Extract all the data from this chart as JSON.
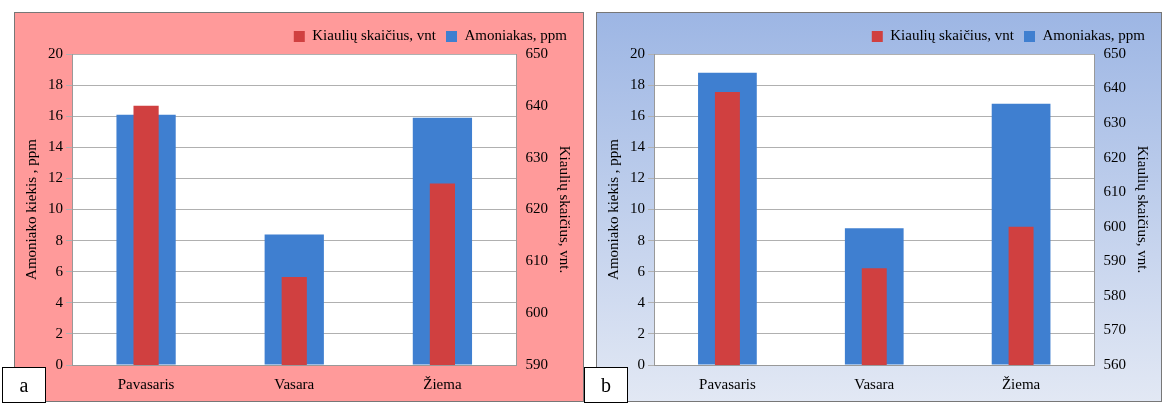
{
  "chart_data": [
    {
      "type": "bar",
      "categories": [
        "Pavasaris",
        "Vasara",
        "Žiema"
      ],
      "ylabel": "Amoniako kiekis , ppm",
      "y2label": "Kiaulių skaičius, vnt.",
      "annotations": [
        "a"
      ],
      "series": [
        {
          "name": "Amoniakas, ppm",
          "color": "#3f7fd0",
          "values": [
            16.1,
            8.4,
            15.9
          ]
        },
        {
          "name": "Kiaulių skaičius, vnt",
          "color": "#d04040",
          "axis": "y2",
          "values": [
            640,
            607,
            625
          ]
        }
      ],
      "ylim": [
        0,
        20
      ],
      "yticks": [
        0,
        2,
        4,
        6,
        8,
        10,
        12,
        14,
        16,
        18,
        20
      ],
      "y2lim": [
        590,
        650
      ],
      "y2ticks": [
        590,
        600,
        610,
        620,
        630,
        640,
        650
      ],
      "grid": "y",
      "legend": "top right"
    },
    {
      "type": "bar",
      "categories": [
        "Pavasaris",
        "Vasara",
        "Žiema"
      ],
      "ylabel": "Amoniako kiekis , ppm",
      "y2label": "Kiaulių skaičius, vnt.",
      "annotations": [
        "b"
      ],
      "series": [
        {
          "name": "Amoniakas, ppm",
          "color": "#3f7fd0",
          "values": [
            18.8,
            8.8,
            16.8
          ]
        },
        {
          "name": "Kiaulių skaičius, vnt",
          "color": "#d04040",
          "axis": "y2",
          "values": [
            639,
            588,
            600
          ]
        }
      ],
      "ylim": [
        0,
        20
      ],
      "yticks": [
        0,
        2,
        4,
        6,
        8,
        10,
        12,
        14,
        16,
        18,
        20
      ],
      "y2lim": [
        560,
        650
      ],
      "y2ticks": [
        560,
        570,
        580,
        590,
        600,
        610,
        620,
        630,
        640,
        650
      ],
      "grid": "y",
      "legend": "top right"
    }
  ]
}
